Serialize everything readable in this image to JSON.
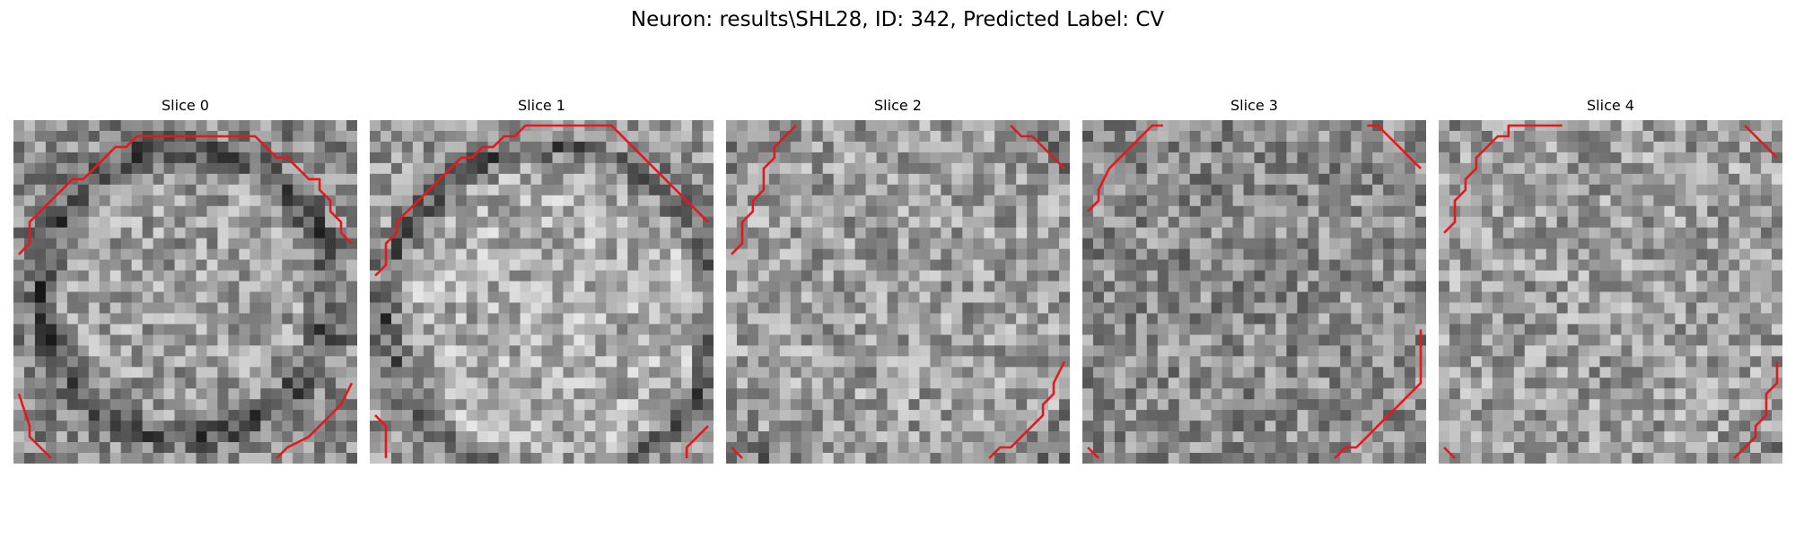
{
  "figure": {
    "title": "Neuron: results\\SHL28, ID: 342, Predicted Label: CV"
  },
  "panels": [
    {
      "title": "Slice 0"
    },
    {
      "title": "Slice 1"
    },
    {
      "title": "Slice 2"
    },
    {
      "title": "Slice 3"
    },
    {
      "title": "Slice 4"
    }
  ],
  "colors": {
    "contour": "#e31a1c",
    "background": "#ffffff"
  },
  "image": {
    "grid": 32,
    "colormap": "gray"
  }
}
